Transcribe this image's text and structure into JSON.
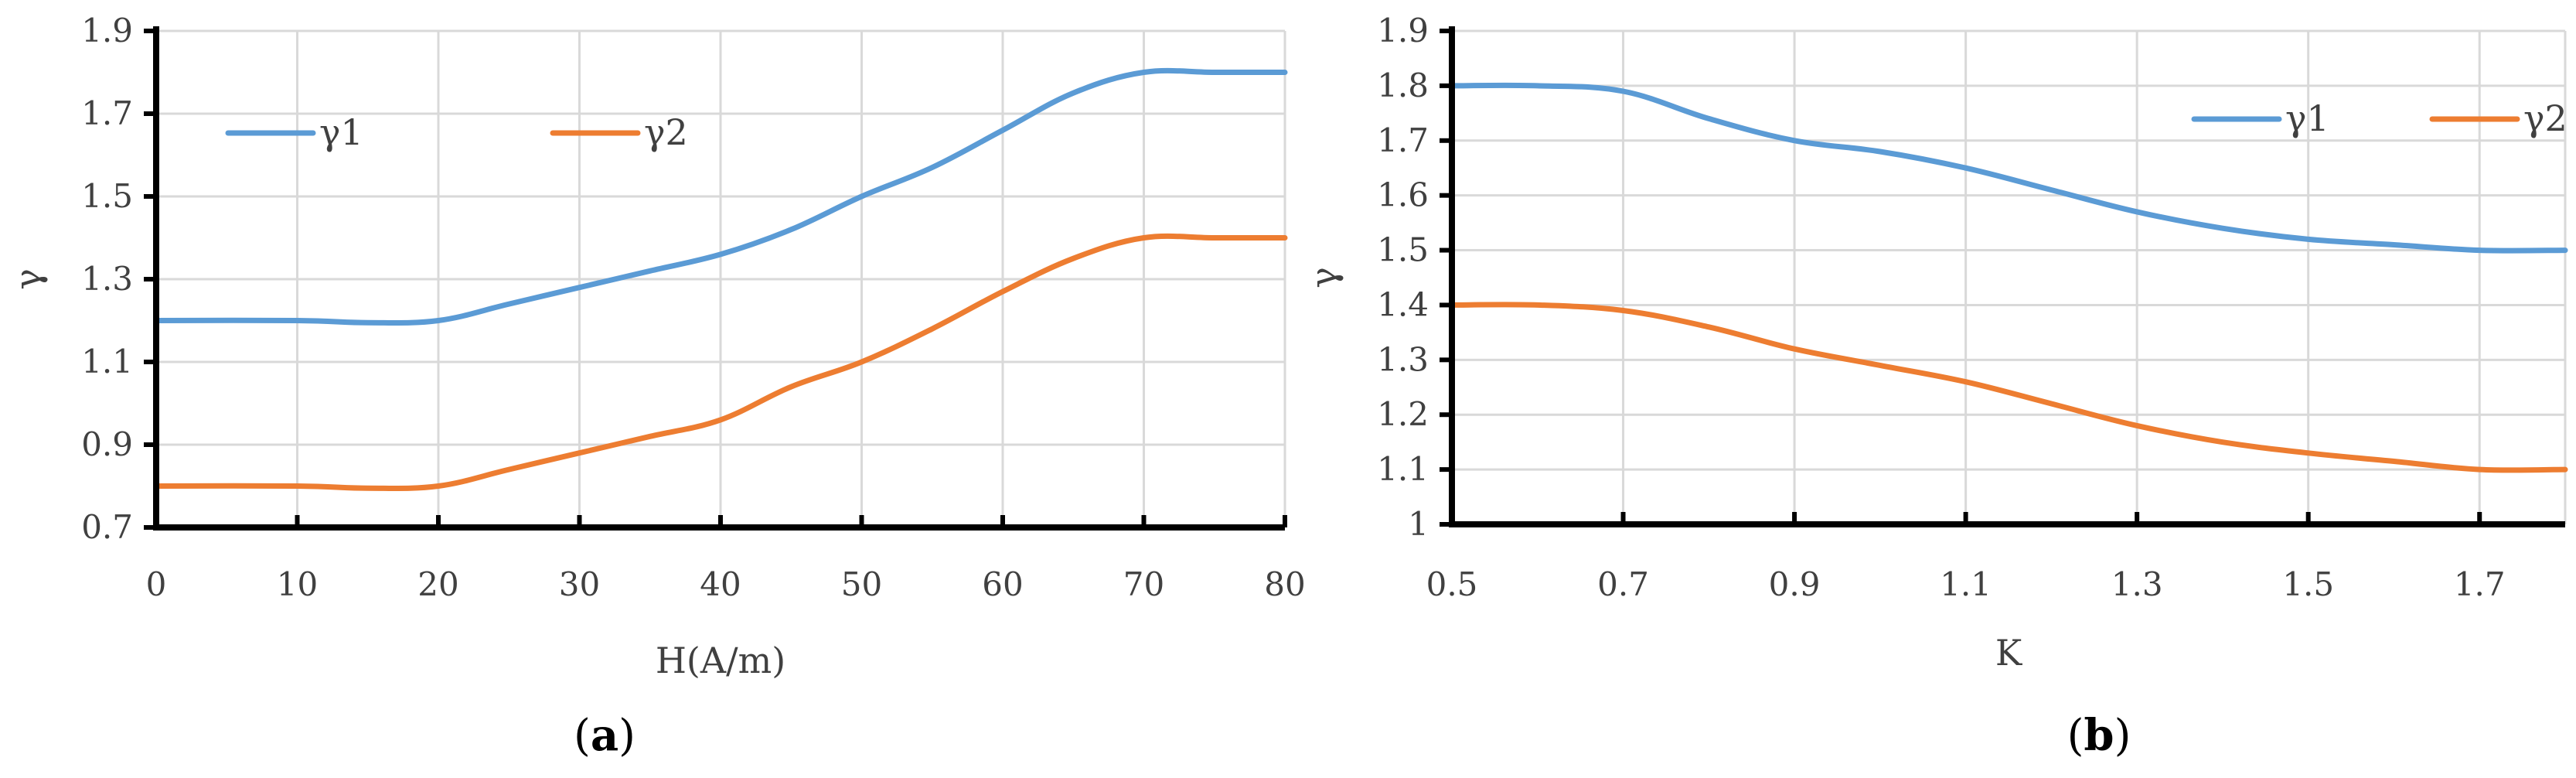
{
  "chart_data": [
    {
      "type": "line",
      "panel_label": "a",
      "xlabel": "H(A/m)",
      "ylabel": "γ",
      "xlim": [
        0,
        80
      ],
      "ylim": [
        0.7,
        1.9
      ],
      "x_ticks": [
        0,
        10,
        20,
        30,
        40,
        50,
        60,
        70,
        80
      ],
      "y_ticks": [
        0.7,
        0.9,
        1.1,
        1.3,
        1.5,
        1.7,
        1.9
      ],
      "grid": true,
      "legend_position": "top-left",
      "series": [
        {
          "name": "γ1",
          "color": "#5b9bd5",
          "x": [
            0,
            10,
            15,
            20,
            25,
            30,
            35,
            40,
            45,
            50,
            55,
            60,
            65,
            70,
            75,
            80
          ],
          "y": [
            1.2,
            1.2,
            1.195,
            1.2,
            1.24,
            1.28,
            1.32,
            1.36,
            1.42,
            1.5,
            1.57,
            1.66,
            1.75,
            1.8,
            1.8,
            1.8
          ]
        },
        {
          "name": "γ2",
          "color": "#ed7d31",
          "x": [
            0,
            10,
            15,
            20,
            25,
            30,
            35,
            40,
            45,
            50,
            55,
            60,
            65,
            70,
            75,
            80
          ],
          "y": [
            0.8,
            0.8,
            0.795,
            0.8,
            0.84,
            0.88,
            0.92,
            0.96,
            1.04,
            1.1,
            1.18,
            1.27,
            1.35,
            1.4,
            1.4,
            1.4
          ]
        }
      ]
    },
    {
      "type": "line",
      "panel_label": "b",
      "xlabel": "K",
      "ylabel": "γ",
      "xlim": [
        0.5,
        1.8
      ],
      "ylim": [
        1.0,
        1.9
      ],
      "x_ticks": [
        "0.5",
        "0.7",
        "0.9",
        "1.1",
        "1.3",
        "1.5",
        "1.7"
      ],
      "y_ticks": [
        "1",
        "1.1",
        "1.2",
        "1.3",
        "1.4",
        "1.5",
        "1.6",
        "1.7",
        "1.8",
        "1.9"
      ],
      "grid": true,
      "legend_position": "top-right",
      "series": [
        {
          "name": "γ1",
          "color": "#5b9bd5",
          "x": [
            0.5,
            0.6,
            0.7,
            0.8,
            0.9,
            1.0,
            1.1,
            1.2,
            1.3,
            1.4,
            1.5,
            1.6,
            1.7,
            1.8
          ],
          "y": [
            1.8,
            1.8,
            1.79,
            1.74,
            1.7,
            1.68,
            1.65,
            1.61,
            1.57,
            1.54,
            1.52,
            1.51,
            1.5,
            1.5
          ]
        },
        {
          "name": "γ2",
          "color": "#ed7d31",
          "x": [
            0.5,
            0.6,
            0.7,
            0.8,
            0.9,
            1.0,
            1.1,
            1.2,
            1.3,
            1.4,
            1.5,
            1.6,
            1.7,
            1.8
          ],
          "y": [
            1.4,
            1.4,
            1.39,
            1.36,
            1.32,
            1.29,
            1.26,
            1.22,
            1.18,
            1.15,
            1.13,
            1.115,
            1.1,
            1.1
          ]
        }
      ]
    }
  ]
}
